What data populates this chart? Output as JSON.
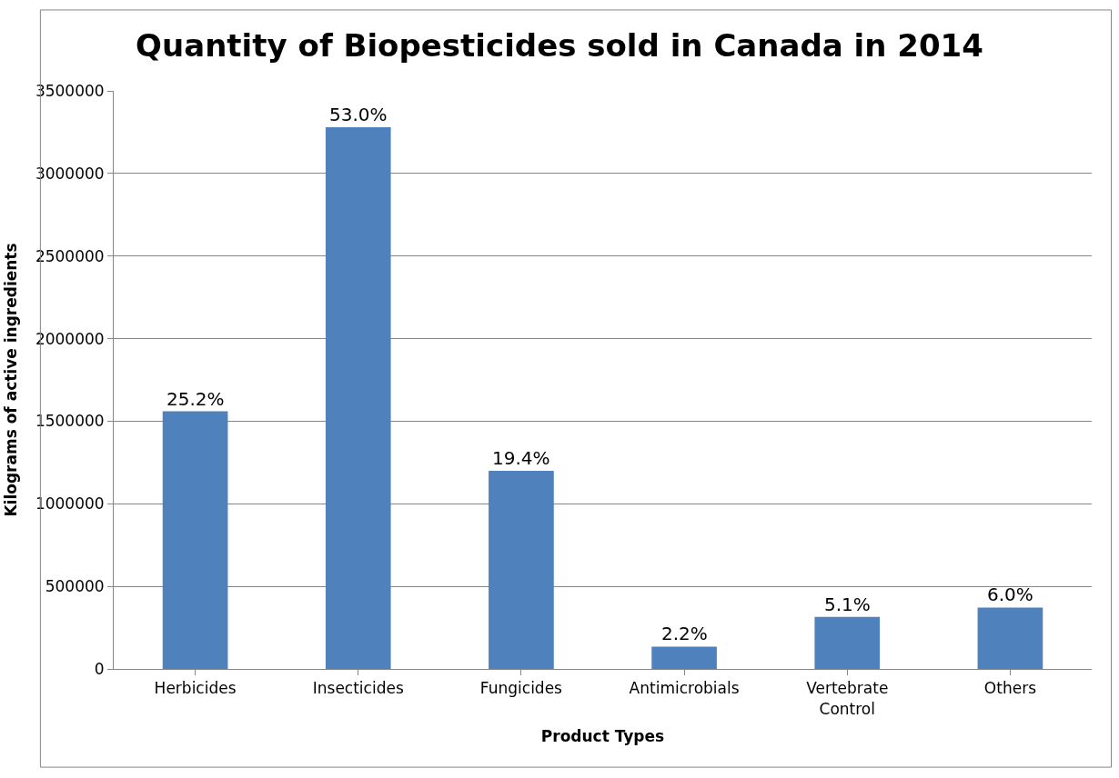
{
  "chart_data": {
    "type": "bar",
    "title": "Quantity of Biopesticides sold in Canada in 2014",
    "xlabel": "Product Types",
    "ylabel": "Kilograms of active ingredients",
    "categories": [
      "Herbicides",
      "Insecticides",
      "Fungicides",
      "Antimicrobials",
      "Vertebrate Control",
      "Others"
    ],
    "values": [
      1560000,
      3280000,
      1200000,
      135000,
      315000,
      372000
    ],
    "annotations": [
      {
        "text": "25.2%",
        "x": "Herbicides",
        "y": 1560000
      },
      {
        "text": "53.0%",
        "x": "Insecticides",
        "y": 3280000
      },
      {
        "text": "19.4%",
        "x": "Fungicides",
        "y": 1200000
      },
      {
        "text": "2.2%",
        "x": "Antimicrobials",
        "y": 135000
      },
      {
        "text": "5.1%",
        "x": "Vertebrate Control",
        "y": 315000
      },
      {
        "text": "6.0%",
        "x": "Others",
        "y": 372000
      }
    ],
    "color": "#4f81bd",
    "ylim": [
      0,
      3500000
    ],
    "yticks": [
      0,
      500000,
      1000000,
      1500000,
      2000000,
      2500000,
      3000000,
      3500000
    ],
    "grid": "y",
    "legend": false
  }
}
